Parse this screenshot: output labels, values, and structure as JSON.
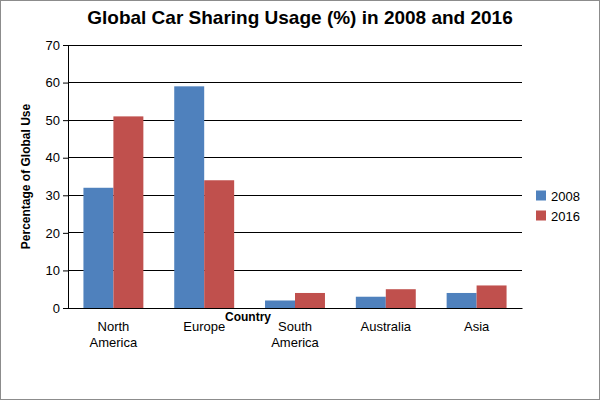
{
  "chart_data": {
    "type": "bar",
    "title": "Global Car Sharing Usage (%) in 2008 and 2016",
    "x_label": "Country",
    "y_label": "Percentage of Global Use",
    "categories": [
      "North America",
      "Europe",
      "South America",
      "Australia",
      "Asia"
    ],
    "series": [
      {
        "name": "2008",
        "color": "#4f81bd",
        "values": [
          32,
          59,
          2,
          3,
          4
        ]
      },
      {
        "name": "2016",
        "color": "#c0504d",
        "values": [
          51,
          34,
          4,
          5,
          6
        ]
      }
    ],
    "ylim": [
      0,
      70
    ],
    "yticks": [
      0,
      10,
      20,
      30,
      40,
      50,
      60,
      70
    ],
    "grid": true,
    "legend": "right"
  }
}
